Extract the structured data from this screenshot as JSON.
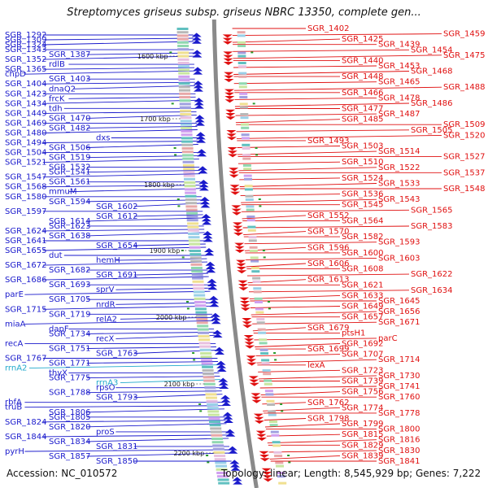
{
  "title": "Streptomyces griseus subsp. griseus NBRC 13350, complete gen...",
  "footer": {
    "accession": "Accession: NC_010572",
    "summary": "Topology: linear; Length: 8,545,929 bp; Genes: 7,222"
  },
  "colors": {
    "minus_strand": "#1a1acc",
    "plus_strand": "#e01010",
    "rna_genes": "#22aacc",
    "backbone": "#8a8a8a"
  },
  "kbp_ticks": [
    "1600 kbp",
    "1700 kbp",
    "1800 kbp",
    "1900 kbp",
    "2000 kbp",
    "2100 kbp",
    "2200 kbp"
  ],
  "left_labels": [
    {
      "text": "SGR_1292",
      "col": 0
    },
    {
      "text": "SGR_1309",
      "col": 0
    },
    {
      "text": "SGR_1324",
      "col": 0
    },
    {
      "text": "SGR_1343",
      "col": 0
    },
    {
      "text": "SGR_1387",
      "col": 1
    },
    {
      "text": "SGR_1352",
      "col": 0
    },
    {
      "text": "rdlB",
      "col": 1
    },
    {
      "text": "SGR_1365",
      "col": 0
    },
    {
      "text": "chpD",
      "col": 0
    },
    {
      "text": "SGR_1403",
      "col": 1
    },
    {
      "text": "SGR_1404",
      "col": 0
    },
    {
      "text": "dnaQ2",
      "col": 1
    },
    {
      "text": "SGR_1423",
      "col": 0
    },
    {
      "text": "frcK",
      "col": 1
    },
    {
      "text": "SGR_1434",
      "col": 0
    },
    {
      "text": "tdh",
      "col": 1
    },
    {
      "text": "SGR_1449",
      "col": 0
    },
    {
      "text": "SGR_1470",
      "col": 1
    },
    {
      "text": "SGR_1469",
      "col": 0
    },
    {
      "text": "SGR_1482",
      "col": 1
    },
    {
      "text": "SGR_1480",
      "col": 0
    },
    {
      "text": "dxs",
      "col": 2
    },
    {
      "text": "SGR_1494",
      "col": 0
    },
    {
      "text": "SGR_1506",
      "col": 1
    },
    {
      "text": "SGR_1504",
      "col": 0
    },
    {
      "text": "SGR_1519",
      "col": 1
    },
    {
      "text": "SGR_1521",
      "col": 0
    },
    {
      "text": "SGR_1532",
      "col": 1
    },
    {
      "text": "SGR_1541",
      "col": 1
    },
    {
      "text": "SGR_1547",
      "col": 0
    },
    {
      "text": "SGR_1561",
      "col": 1
    },
    {
      "text": "SGR_1568",
      "col": 0
    },
    {
      "text": "mmuM",
      "col": 1
    },
    {
      "text": "SGR_1580",
      "col": 0
    },
    {
      "text": "SGR_1594",
      "col": 1
    },
    {
      "text": "SGR_1602",
      "col": 2
    },
    {
      "text": "SGR_1597",
      "col": 0
    },
    {
      "text": "SGR_1612",
      "col": 2
    },
    {
      "text": "SGR_1614",
      "col": 1
    },
    {
      "text": "SGR_1623",
      "col": 1
    },
    {
      "text": "SGR_1624",
      "col": 0
    },
    {
      "text": "SGR_1638",
      "col": 1
    },
    {
      "text": "SGR_1641",
      "col": 0
    },
    {
      "text": "SGR_1654",
      "col": 2
    },
    {
      "text": "SGR_1655",
      "col": 0
    },
    {
      "text": "dut",
      "col": 1
    },
    {
      "text": "hemH",
      "col": 2
    },
    {
      "text": "SGR_1672",
      "col": 0
    },
    {
      "text": "SGR_1682",
      "col": 1
    },
    {
      "text": "SGR_1691",
      "col": 2
    },
    {
      "text": "SGR_1686",
      "col": 0
    },
    {
      "text": "SGR_1693",
      "col": 1
    },
    {
      "text": "sprV",
      "col": 2
    },
    {
      "text": "parE",
      "col": 0
    },
    {
      "text": "SGR_1705",
      "col": 1
    },
    {
      "text": "nrdR",
      "col": 2
    },
    {
      "text": "SGR_1715",
      "col": 0
    },
    {
      "text": "SGR_1719",
      "col": 1
    },
    {
      "text": "relA2",
      "col": 2
    },
    {
      "text": "miaA",
      "col": 0
    },
    {
      "text": "dapF",
      "col": 1
    },
    {
      "text": "SGR_1734",
      "col": 1
    },
    {
      "text": "recX",
      "col": 2
    },
    {
      "text": "recA",
      "col": 0
    },
    {
      "text": "SGR_1751",
      "col": 1
    },
    {
      "text": "SGR_1763",
      "col": 2
    },
    {
      "text": "SGR_1767",
      "col": 0
    },
    {
      "text": "SGR_1771",
      "col": 1
    },
    {
      "text": "rrnA2",
      "col": 0,
      "rna": true
    },
    {
      "text": "thyX",
      "col": 1
    },
    {
      "text": "SGR_1775",
      "col": 1
    },
    {
      "text": "rrnA3",
      "col": 2,
      "rna": true
    },
    {
      "text": "rpsO",
      "col": 2
    },
    {
      "text": "SGR_1788",
      "col": 1
    },
    {
      "text": "SGR_1793",
      "col": 2
    },
    {
      "text": "rbfA",
      "col": 0
    },
    {
      "text": "truB",
      "col": 0
    },
    {
      "text": "SGR_1806",
      "col": 1
    },
    {
      "text": "SGR_1805",
      "col": 1
    },
    {
      "text": "SGR_1824",
      "col": 0
    },
    {
      "text": "SGR_1820",
      "col": 1
    },
    {
      "text": "proS",
      "col": 2
    },
    {
      "text": "SGR_1844",
      "col": 0
    },
    {
      "text": "SGR_1834",
      "col": 1
    },
    {
      "text": "SGR_1831",
      "col": 2
    },
    {
      "text": "pyrH",
      "col": 0
    },
    {
      "text": "SGR_1857",
      "col": 1
    },
    {
      "text": "SGR_1850",
      "col": 2
    }
  ],
  "right_labels": [
    {
      "text": "SGR_1402",
      "col": 0
    },
    {
      "text": "SGR_1459",
      "col": 4
    },
    {
      "text": "SGR_1425",
      "col": 1
    },
    {
      "text": "SGR_1439",
      "col": 2
    },
    {
      "text": "SGR_1454",
      "col": 3
    },
    {
      "text": "SGR_1475",
      "col": 4
    },
    {
      "text": "SGR_1440",
      "col": 1
    },
    {
      "text": "SGR_1453",
      "col": 2
    },
    {
      "text": "SGR_1468",
      "col": 3
    },
    {
      "text": "SGR_1448",
      "col": 1
    },
    {
      "text": "SGR_1465",
      "col": 2
    },
    {
      "text": "SGR_1488",
      "col": 4
    },
    {
      "text": "SGR_1466",
      "col": 1
    },
    {
      "text": "SGR_1478",
      "col": 2
    },
    {
      "text": "SGR_1486",
      "col": 3
    },
    {
      "text": "SGR_1477",
      "col": 1
    },
    {
      "text": "SGR_1487",
      "col": 2
    },
    {
      "text": "SGR_1485",
      "col": 1
    },
    {
      "text": "SGR_1509",
      "col": 4
    },
    {
      "text": "SGR_1505",
      "col": 3
    },
    {
      "text": "SGR_1520",
      "col": 4
    },
    {
      "text": "SGR_1493",
      "col": 0
    },
    {
      "text": "SGR_1503",
      "col": 1
    },
    {
      "text": "SGR_1514",
      "col": 2
    },
    {
      "text": "SGR_1527",
      "col": 4
    },
    {
      "text": "SGR_1510",
      "col": 1
    },
    {
      "text": "SGR_1522",
      "col": 2
    },
    {
      "text": "SGR_1537",
      "col": 4
    },
    {
      "text": "SGR_1524",
      "col": 1
    },
    {
      "text": "SGR_1533",
      "col": 2
    },
    {
      "text": "SGR_1548",
      "col": 4
    },
    {
      "text": "SGR_1536",
      "col": 1
    },
    {
      "text": "SGR_1543",
      "col": 2
    },
    {
      "text": "SGR_1545",
      "col": 1
    },
    {
      "text": "SGR_1565",
      "col": 3
    },
    {
      "text": "SGR_1552",
      "col": 0
    },
    {
      "text": "SGR_1564",
      "col": 1
    },
    {
      "text": "SGR_1583",
      "col": 3
    },
    {
      "text": "SGR_1570",
      "col": 0
    },
    {
      "text": "SGR_1582",
      "col": 1
    },
    {
      "text": "SGR_1593",
      "col": 2
    },
    {
      "text": "SGR_1596",
      "col": 0
    },
    {
      "text": "SGR_1600",
      "col": 1
    },
    {
      "text": "SGR_1603",
      "col": 2
    },
    {
      "text": "SGR_1606",
      "col": 0
    },
    {
      "text": "SGR_1608",
      "col": 1
    },
    {
      "text": "SGR_1622",
      "col": 3
    },
    {
      "text": "SGR_1613",
      "col": 0
    },
    {
      "text": "SGR_1621",
      "col": 1
    },
    {
      "text": "SGR_1634",
      "col": 3
    },
    {
      "text": "SGR_1633",
      "col": 1
    },
    {
      "text": "SGR_1645",
      "col": 2
    },
    {
      "text": "SGR_1649",
      "col": 1
    },
    {
      "text": "SGR_1656",
      "col": 2
    },
    {
      "text": "SGR_1657",
      "col": 1
    },
    {
      "text": "SGR_1671",
      "col": 2
    },
    {
      "text": "SGR_1679",
      "col": 0
    },
    {
      "text": "ptsH1",
      "col": 1
    },
    {
      "text": "parC",
      "col": 2
    },
    {
      "text": "SGR_1692",
      "col": 1
    },
    {
      "text": "SGR_1699",
      "col": 0
    },
    {
      "text": "SGR_1707",
      "col": 1
    },
    {
      "text": "SGR_1714",
      "col": 2
    },
    {
      "text": "lexA",
      "col": 0
    },
    {
      "text": "SGR_1723",
      "col": 1
    },
    {
      "text": "SGR_1730",
      "col": 2
    },
    {
      "text": "SGR_1739",
      "col": 1
    },
    {
      "text": "SGR_1741",
      "col": 2
    },
    {
      "text": "SGR_1756",
      "col": 1
    },
    {
      "text": "SGR_1760",
      "col": 2
    },
    {
      "text": "SGR_1762",
      "col": 0
    },
    {
      "text": "SGR_1774",
      "col": 1
    },
    {
      "text": "SGR_1778",
      "col": 2
    },
    {
      "text": "SGR_1798",
      "col": 0
    },
    {
      "text": "SGR_1799",
      "col": 1
    },
    {
      "text": "SGR_1800",
      "col": 2
    },
    {
      "text": "SGR_1815",
      "col": 1
    },
    {
      "text": "SGR_1816",
      "col": 2
    },
    {
      "text": "SGR_1829",
      "col": 1
    },
    {
      "text": "SGR_1830",
      "col": 2
    },
    {
      "text": "SGR_1839",
      "col": 1
    },
    {
      "text": "SGR_1841",
      "col": 2
    }
  ]
}
